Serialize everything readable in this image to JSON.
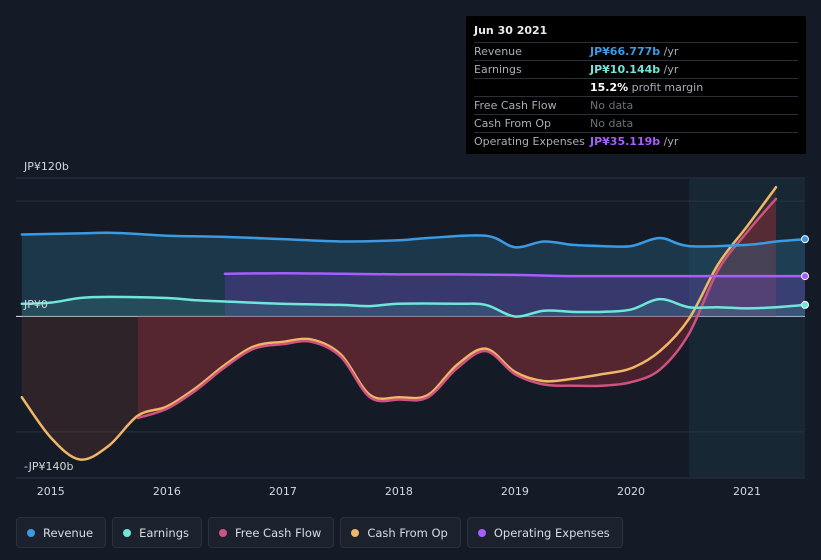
{
  "tooltip": {
    "date": "Jun 30 2021",
    "rows": [
      {
        "label": "Revenue",
        "value": "JP¥66.777b",
        "unit": " /yr",
        "color": "#3b9ae1"
      },
      {
        "label": "Earnings",
        "value": "JP¥10.144b",
        "unit": " /yr",
        "color": "#6ee7da"
      },
      {
        "label": "",
        "value": "15.2%",
        "unit": " profit margin",
        "color": "#ffffff"
      },
      {
        "label": "Free Cash Flow",
        "value": "No data",
        "unit": "",
        "color": "#6b7079"
      },
      {
        "label": "Cash From Op",
        "value": "No data",
        "unit": "",
        "color": "#6b7079"
      },
      {
        "label": "Operating Expenses",
        "value": "JP¥35.119b",
        "unit": " /yr",
        "color": "#a75dff"
      }
    ]
  },
  "legend": [
    {
      "label": "Revenue",
      "color": "#3b9ae1"
    },
    {
      "label": "Earnings",
      "color": "#6ee7da"
    },
    {
      "label": "Free Cash Flow",
      "color": "#d0527f"
    },
    {
      "label": "Cash From Op",
      "color": "#f0b766"
    },
    {
      "label": "Operating Expenses",
      "color": "#a75dff"
    }
  ],
  "chart_data": {
    "type": "area",
    "ylabels": {
      "top": "JP¥120b",
      "zero": "JP¥0",
      "bottom": "-JP¥140b"
    },
    "ylim": [
      -140,
      120
    ],
    "xlim": [
      2014.7,
      2021.5
    ],
    "x_ticks": [
      "2015",
      "2016",
      "2017",
      "2018",
      "2019",
      "2020",
      "2021"
    ],
    "highlight_from": 2020.5,
    "grid": true,
    "series": [
      {
        "name": "Revenue",
        "color": "#3b9ae1",
        "points": [
          [
            2014.75,
            71
          ],
          [
            2015.25,
            72
          ],
          [
            2015.5,
            72.5
          ],
          [
            2015.75,
            71.5
          ],
          [
            2016.0,
            70
          ],
          [
            2016.5,
            69
          ],
          [
            2017.0,
            67
          ],
          [
            2017.5,
            65
          ],
          [
            2018.0,
            66
          ],
          [
            2018.25,
            68
          ],
          [
            2018.75,
            70
          ],
          [
            2019.0,
            60
          ],
          [
            2019.25,
            65
          ],
          [
            2019.5,
            62
          ],
          [
            2019.75,
            61
          ],
          [
            2020.0,
            61
          ],
          [
            2020.25,
            68
          ],
          [
            2020.5,
            61
          ],
          [
            2021.0,
            62
          ],
          [
            2021.25,
            65
          ],
          [
            2021.5,
            67
          ]
        ]
      },
      {
        "name": "Earnings",
        "color": "#6ee7da",
        "points": [
          [
            2014.75,
            11
          ],
          [
            2015.0,
            12
          ],
          [
            2015.25,
            16
          ],
          [
            2015.5,
            17
          ],
          [
            2016.0,
            16
          ],
          [
            2016.25,
            14
          ],
          [
            2016.5,
            13
          ],
          [
            2017.0,
            11
          ],
          [
            2017.5,
            10
          ],
          [
            2017.75,
            9
          ],
          [
            2018.0,
            11
          ],
          [
            2018.5,
            11
          ],
          [
            2018.75,
            10
          ],
          [
            2019.0,
            0
          ],
          [
            2019.25,
            5
          ],
          [
            2019.5,
            4
          ],
          [
            2019.75,
            4
          ],
          [
            2020.0,
            6
          ],
          [
            2020.25,
            15
          ],
          [
            2020.5,
            8
          ],
          [
            2020.75,
            8
          ],
          [
            2021.0,
            7
          ],
          [
            2021.25,
            8
          ],
          [
            2021.5,
            10
          ]
        ]
      },
      {
        "name": "Operating Expenses",
        "color": "#a75dff",
        "points": [
          [
            2016.5,
            37
          ],
          [
            2017.0,
            37.5
          ],
          [
            2017.5,
            37
          ],
          [
            2018.0,
            36.5
          ],
          [
            2018.5,
            36.5
          ],
          [
            2019.0,
            36
          ],
          [
            2019.5,
            35
          ],
          [
            2020.0,
            35
          ],
          [
            2020.5,
            35
          ],
          [
            2021.0,
            35
          ],
          [
            2021.5,
            35
          ]
        ]
      },
      {
        "name": "Free Cash Flow",
        "color": "#d0527f",
        "points": [
          [
            2015.75,
            -88
          ],
          [
            2016.0,
            -80
          ],
          [
            2016.25,
            -64
          ],
          [
            2016.5,
            -44
          ],
          [
            2016.75,
            -28
          ],
          [
            2017.0,
            -24
          ],
          [
            2017.25,
            -22
          ],
          [
            2017.5,
            -35
          ],
          [
            2017.75,
            -70
          ],
          [
            2018.0,
            -72
          ],
          [
            2018.25,
            -70
          ],
          [
            2018.5,
            -45
          ],
          [
            2018.75,
            -30
          ],
          [
            2019.0,
            -50
          ],
          [
            2019.25,
            -59
          ],
          [
            2019.5,
            -60
          ],
          [
            2019.75,
            -60
          ],
          [
            2020.0,
            -57
          ],
          [
            2020.25,
            -46
          ],
          [
            2020.5,
            -15
          ],
          [
            2020.75,
            40
          ],
          [
            2021.0,
            73
          ],
          [
            2021.25,
            102
          ]
        ]
      },
      {
        "name": "Cash From Op",
        "color": "#f0b766",
        "points": [
          [
            2014.75,
            -70
          ],
          [
            2015.0,
            -105
          ],
          [
            2015.25,
            -124
          ],
          [
            2015.5,
            -112
          ],
          [
            2015.75,
            -86
          ],
          [
            2016.0,
            -78
          ],
          [
            2016.25,
            -62
          ],
          [
            2016.5,
            -42
          ],
          [
            2016.75,
            -26
          ],
          [
            2017.0,
            -22
          ],
          [
            2017.25,
            -20
          ],
          [
            2017.5,
            -33
          ],
          [
            2017.75,
            -68
          ],
          [
            2018.0,
            -70
          ],
          [
            2018.25,
            -68
          ],
          [
            2018.5,
            -42
          ],
          [
            2018.75,
            -28
          ],
          [
            2019.0,
            -48
          ],
          [
            2019.25,
            -56
          ],
          [
            2019.5,
            -54
          ],
          [
            2019.75,
            -50
          ],
          [
            2020.0,
            -45
          ],
          [
            2020.25,
            -30
          ],
          [
            2020.5,
            -2
          ],
          [
            2020.75,
            45
          ],
          [
            2021.0,
            78
          ],
          [
            2021.25,
            112
          ]
        ]
      }
    ]
  }
}
